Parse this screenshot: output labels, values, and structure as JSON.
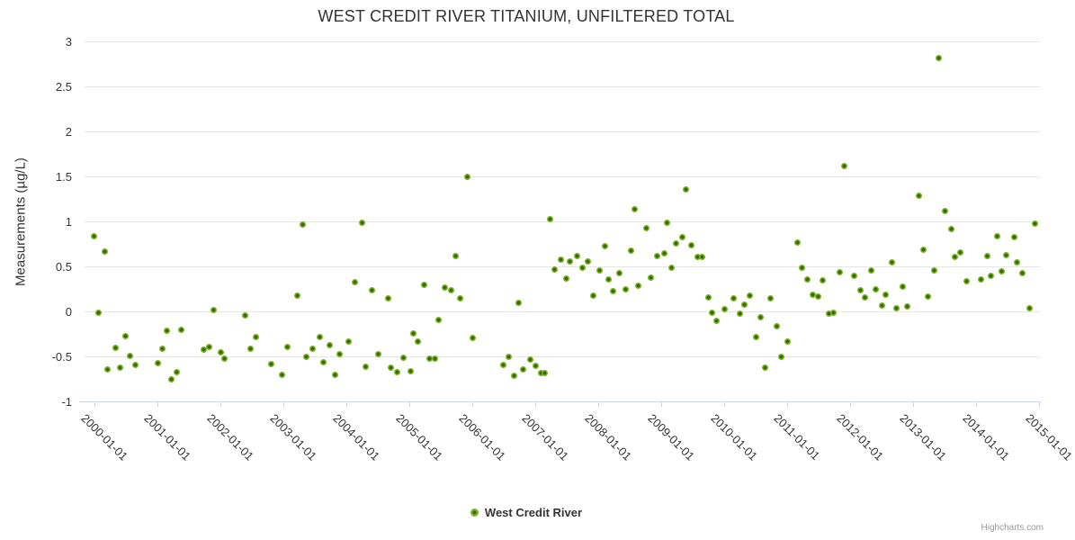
{
  "chart": {
    "title": "WEST CREDIT RIVER TITANIUM, UNFILTERED TOTAL",
    "credits": "Highcharts.com",
    "background_color": "#ffffff",
    "gridline_color": "#e6e6e6",
    "axis_line_color": "#ccd6eb",
    "text_color": "#333333",
    "legend": {
      "label": "West Credit River",
      "marker_color": "#7ab520"
    }
  },
  "chart_data": {
    "type": "scatter",
    "title": "WEST CREDIT RIVER TITANIUM, UNFILTERED TOTAL",
    "xlabel": "",
    "ylabel": "Measurements (µg/L)",
    "grid": true,
    "legend_position": "bottom-center",
    "x_axis": {
      "type": "datetime",
      "tick_years": [
        2000,
        2001,
        2002,
        2003,
        2004,
        2005,
        2006,
        2007,
        2008,
        2009,
        2010,
        2011,
        2012,
        2013,
        2014,
        2015
      ],
      "tick_labels": [
        "2000-01-01",
        "2001-01-01",
        "2002-01-01",
        "2003-01-01",
        "2004-01-01",
        "2005-01-01",
        "2006-01-01",
        "2007-01-01",
        "2008-01-01",
        "2009-01-01",
        "2010-01-01",
        "2011-01-01",
        "2012-01-01",
        "2013-01-01",
        "2014-01-01",
        "2015-01-01"
      ],
      "range_years": [
        1999.843,
        2015.014
      ],
      "label_rotation_deg": 45
    },
    "y_axis": {
      "ticks": [
        -1,
        -0.5,
        0,
        0.5,
        1,
        1.5,
        2,
        2.5,
        3
      ],
      "tick_labels": [
        "-1",
        "-0.5",
        "0",
        "0.5",
        "1",
        "1.5",
        "2",
        "2.5",
        "3"
      ],
      "range": [
        -1,
        3
      ]
    },
    "series": [
      {
        "name": "West Credit River",
        "color": "#7ab520",
        "marker": "circle",
        "points": [
          [
            1999.99,
            0.84
          ],
          [
            2000.07,
            -0.01
          ],
          [
            2000.16,
            0.67
          ],
          [
            2000.21,
            -0.64
          ],
          [
            2000.34,
            -0.4
          ],
          [
            2000.4,
            -0.62
          ],
          [
            2000.49,
            -0.27
          ],
          [
            2000.56,
            -0.49
          ],
          [
            2000.65,
            -0.59
          ],
          [
            2001.0,
            -0.57
          ],
          [
            2001.08,
            -0.41
          ],
          [
            2001.15,
            -0.21
          ],
          [
            2001.22,
            -0.75
          ],
          [
            2001.31,
            -0.67
          ],
          [
            2001.38,
            -0.2
          ],
          [
            2001.73,
            -0.42
          ],
          [
            2001.82,
            -0.39
          ],
          [
            2001.89,
            0.02
          ],
          [
            2002.0,
            -0.45
          ],
          [
            2002.07,
            -0.52
          ],
          [
            2002.39,
            -0.04
          ],
          [
            2002.48,
            -0.41
          ],
          [
            2002.56,
            -0.28
          ],
          [
            2002.81,
            -0.58
          ],
          [
            2002.98,
            -0.7
          ],
          [
            2003.07,
            -0.39
          ],
          [
            2003.22,
            0.18
          ],
          [
            2003.31,
            0.97
          ],
          [
            2003.37,
            -0.5
          ],
          [
            2003.47,
            -0.41
          ],
          [
            2003.58,
            -0.28
          ],
          [
            2003.64,
            -0.56
          ],
          [
            2003.74,
            -0.37
          ],
          [
            2003.82,
            -0.7
          ],
          [
            2003.89,
            -0.47
          ],
          [
            2004.03,
            -0.33
          ],
          [
            2004.13,
            0.33
          ],
          [
            2004.25,
            0.99
          ],
          [
            2004.31,
            -0.61
          ],
          [
            2004.4,
            0.24
          ],
          [
            2004.5,
            -0.47
          ],
          [
            2004.66,
            0.15
          ],
          [
            2004.71,
            -0.62
          ],
          [
            2004.81,
            -0.67
          ],
          [
            2004.9,
            -0.51
          ],
          [
            2005.02,
            -0.66
          ],
          [
            2005.07,
            -0.24
          ],
          [
            2005.13,
            -0.33
          ],
          [
            2005.24,
            0.3
          ],
          [
            2005.32,
            -0.52
          ],
          [
            2005.41,
            -0.52
          ],
          [
            2005.47,
            -0.09
          ],
          [
            2005.56,
            0.27
          ],
          [
            2005.66,
            0.24
          ],
          [
            2005.74,
            0.62
          ],
          [
            2005.81,
            0.15
          ],
          [
            2005.92,
            1.5
          ],
          [
            2006.01,
            -0.29
          ],
          [
            2006.49,
            -0.59
          ],
          [
            2006.58,
            -0.5
          ],
          [
            2006.67,
            -0.71
          ],
          [
            2006.74,
            0.1
          ],
          [
            2006.81,
            -0.64
          ],
          [
            2006.92,
            -0.53
          ],
          [
            2007.0,
            -0.6
          ],
          [
            2007.09,
            -0.68
          ],
          [
            2007.15,
            -0.68
          ],
          [
            2007.24,
            1.03
          ],
          [
            2007.31,
            0.47
          ],
          [
            2007.4,
            0.58
          ],
          [
            2007.49,
            0.37
          ],
          [
            2007.55,
            0.56
          ],
          [
            2007.67,
            0.62
          ],
          [
            2007.75,
            0.49
          ],
          [
            2007.83,
            0.56
          ],
          [
            2007.92,
            0.18
          ],
          [
            2008.02,
            0.46
          ],
          [
            2008.1,
            0.73
          ],
          [
            2008.17,
            0.36
          ],
          [
            2008.24,
            0.23
          ],
          [
            2008.33,
            0.43
          ],
          [
            2008.43,
            0.25
          ],
          [
            2008.52,
            0.68
          ],
          [
            2008.58,
            1.14
          ],
          [
            2008.64,
            0.29
          ],
          [
            2008.76,
            0.93
          ],
          [
            2008.83,
            0.38
          ],
          [
            2008.93,
            0.62
          ],
          [
            2009.05,
            0.65
          ],
          [
            2009.09,
            0.99
          ],
          [
            2009.16,
            0.49
          ],
          [
            2009.23,
            0.76
          ],
          [
            2009.33,
            0.83
          ],
          [
            2009.39,
            1.36
          ],
          [
            2009.48,
            0.74
          ],
          [
            2009.58,
            0.61
          ],
          [
            2009.65,
            0.61
          ],
          [
            2009.75,
            0.16
          ],
          [
            2009.81,
            -0.01
          ],
          [
            2009.88,
            -0.1
          ],
          [
            2010.01,
            0.03
          ],
          [
            2010.15,
            0.15
          ],
          [
            2010.25,
            -0.02
          ],
          [
            2010.32,
            0.08
          ],
          [
            2010.4,
            0.18
          ],
          [
            2010.5,
            -0.28
          ],
          [
            2010.58,
            -0.06
          ],
          [
            2010.65,
            -0.62
          ],
          [
            2010.74,
            0.15
          ],
          [
            2010.83,
            -0.16
          ],
          [
            2010.9,
            -0.5
          ],
          [
            2011.0,
            -0.33
          ],
          [
            2011.16,
            0.77
          ],
          [
            2011.24,
            0.49
          ],
          [
            2011.32,
            0.36
          ],
          [
            2011.4,
            0.19
          ],
          [
            2011.49,
            0.17
          ],
          [
            2011.57,
            0.35
          ],
          [
            2011.66,
            -0.02
          ],
          [
            2011.73,
            -0.01
          ],
          [
            2011.84,
            0.44
          ],
          [
            2011.91,
            1.62
          ],
          [
            2012.07,
            0.4
          ],
          [
            2012.17,
            0.24
          ],
          [
            2012.23,
            0.16
          ],
          [
            2012.33,
            0.46
          ],
          [
            2012.41,
            0.25
          ],
          [
            2012.51,
            0.07
          ],
          [
            2012.57,
            0.19
          ],
          [
            2012.67,
            0.55
          ],
          [
            2012.74,
            0.04
          ],
          [
            2012.84,
            0.28
          ],
          [
            2012.9,
            0.06
          ],
          [
            2013.09,
            1.29
          ],
          [
            2013.17,
            0.69
          ],
          [
            2013.24,
            0.17
          ],
          [
            2013.33,
            0.46
          ],
          [
            2013.41,
            2.82
          ],
          [
            2013.5,
            1.12
          ],
          [
            2013.61,
            0.92
          ],
          [
            2013.66,
            0.61
          ],
          [
            2013.75,
            0.66
          ],
          [
            2013.85,
            0.34
          ],
          [
            2014.08,
            0.36
          ],
          [
            2014.18,
            0.62
          ],
          [
            2014.24,
            0.4
          ],
          [
            2014.34,
            0.84
          ],
          [
            2014.41,
            0.45
          ],
          [
            2014.48,
            0.63
          ],
          [
            2014.61,
            0.83
          ],
          [
            2014.65,
            0.55
          ],
          [
            2014.74,
            0.43
          ],
          [
            2014.85,
            0.04
          ],
          [
            2014.94,
            0.98
          ]
        ]
      }
    ]
  }
}
